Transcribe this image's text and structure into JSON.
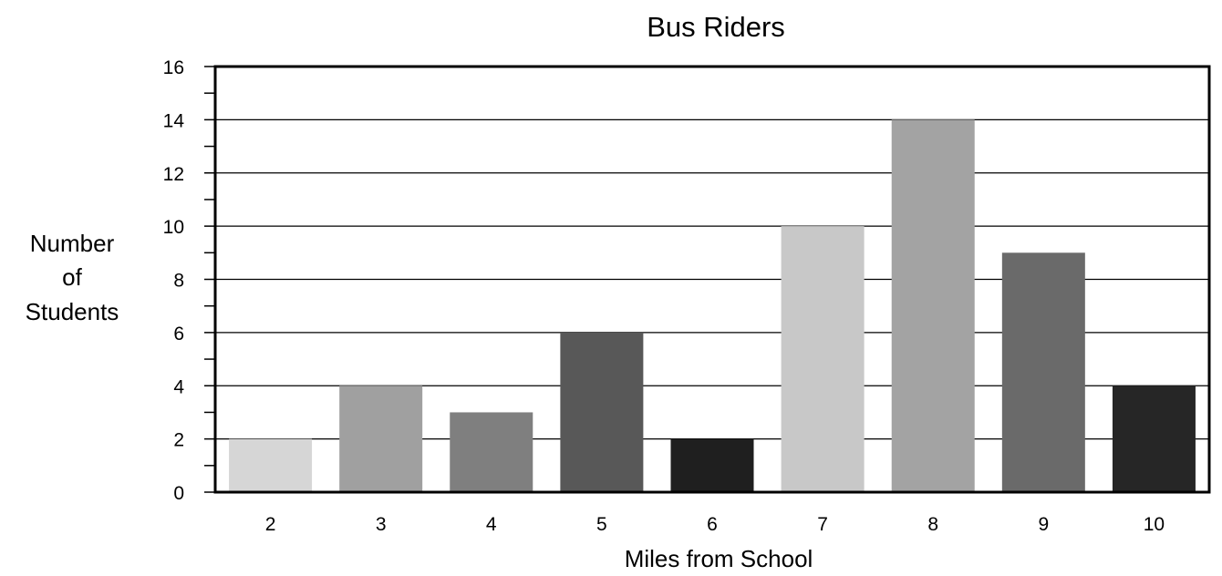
{
  "chart_data": {
    "type": "bar",
    "title": "Bus Riders",
    "xlabel": "Miles from School",
    "ylabel_lines": [
      "Number",
      "of",
      "Students"
    ],
    "categories": [
      "2",
      "3",
      "4",
      "5",
      "6",
      "7",
      "8",
      "9",
      "10"
    ],
    "values": [
      2,
      4,
      3,
      6,
      2,
      10,
      14,
      9,
      4
    ],
    "bar_colors": [
      "#d6d6d6",
      "#a0a0a0",
      "#7f7f7f",
      "#585858",
      "#1f1f1f",
      "#c8c8c8",
      "#a3a3a3",
      "#6a6a6a",
      "#262626"
    ],
    "ylim": [
      0,
      16
    ],
    "y_ticks": [
      0,
      2,
      4,
      6,
      8,
      10,
      12,
      14,
      16
    ],
    "y_minor_step": 1,
    "grid": true
  }
}
